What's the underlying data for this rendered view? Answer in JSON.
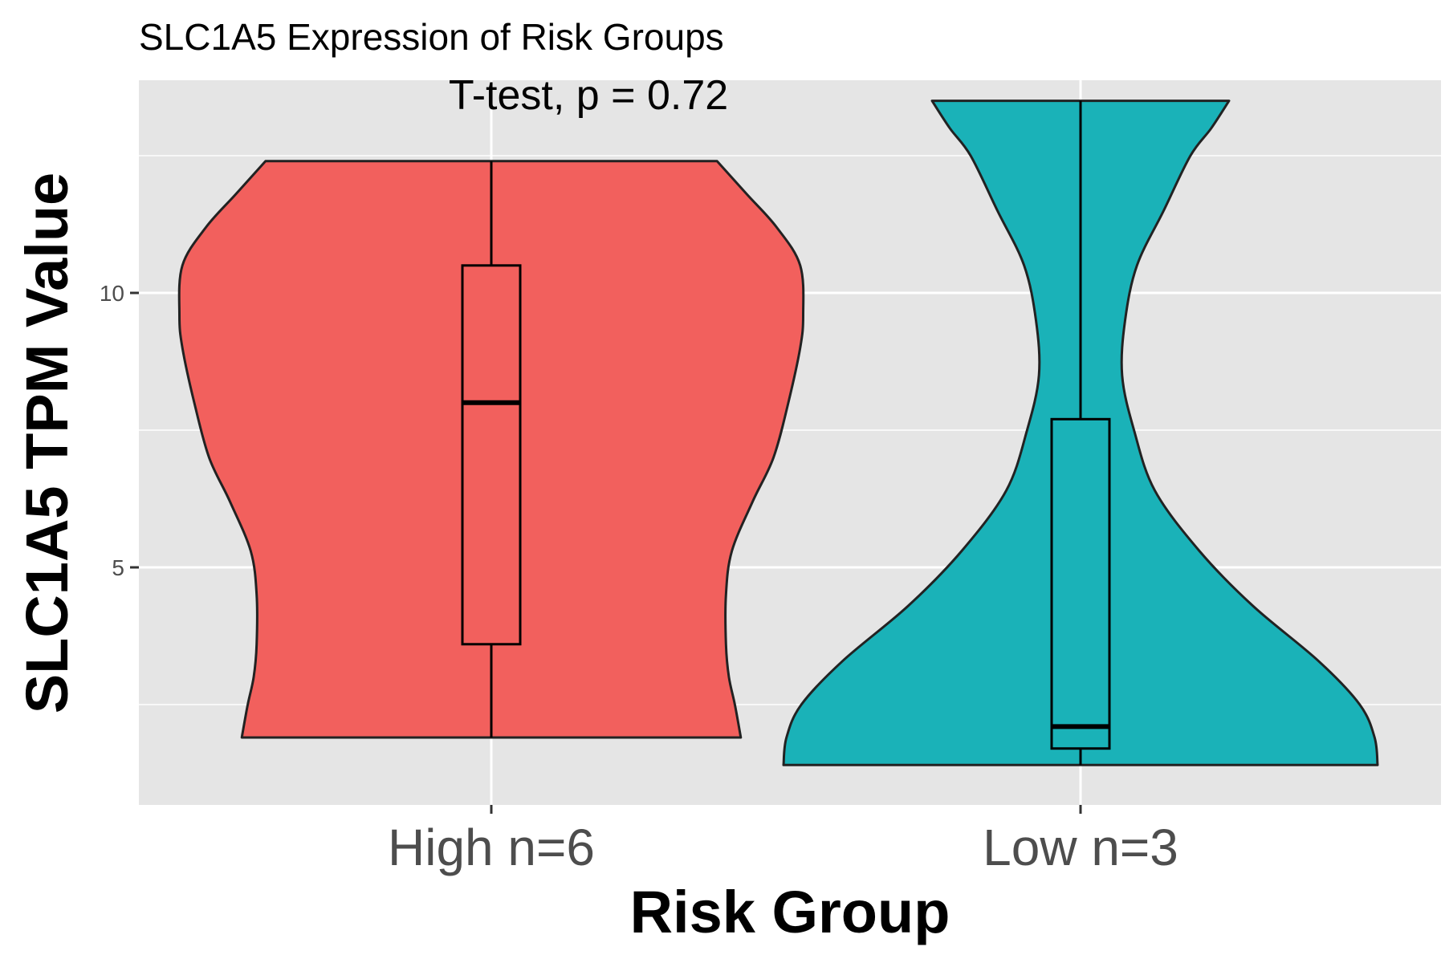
{
  "chart_data": {
    "type": "violin",
    "title": "SLC1A5 Expression of Risk Groups",
    "annotation": "T-test, p = 0.72",
    "xlabel": "Risk Group",
    "ylabel": "SLC1A5 TPM Value",
    "categories": [
      "High n=6",
      "Low n=3"
    ],
    "y_ticks": [
      5,
      10
    ],
    "ylim": [
      0.5,
      13.8
    ],
    "grid": true,
    "legend": "none",
    "groups": [
      {
        "name": "High n=6",
        "color": "#F2605D",
        "min": 1.9,
        "q1": 3.6,
        "median": 8.0,
        "q3": 10.5,
        "max": 12.4,
        "density": [
          [
            1.9,
            0.84
          ],
          [
            2.5,
            0.82
          ],
          [
            3.0,
            0.8
          ],
          [
            3.6,
            0.79
          ],
          [
            4.5,
            0.79
          ],
          [
            5.3,
            0.81
          ],
          [
            6.2,
            0.88
          ],
          [
            7.0,
            0.95
          ],
          [
            8.0,
            1.0
          ],
          [
            9.0,
            1.04
          ],
          [
            9.6,
            1.05
          ],
          [
            10.5,
            1.04
          ],
          [
            11.2,
            0.96
          ],
          [
            11.8,
            0.86
          ],
          [
            12.4,
            0.76
          ]
        ]
      },
      {
        "name": "Low n=3",
        "color": "#1AB2B8",
        "min": 1.4,
        "q1": 1.7,
        "median": 2.1,
        "q3": 7.7,
        "max": 13.5,
        "density": [
          [
            1.4,
            1.0
          ],
          [
            1.9,
            0.99
          ],
          [
            2.5,
            0.94
          ],
          [
            3.3,
            0.8
          ],
          [
            4.3,
            0.58
          ],
          [
            5.3,
            0.4
          ],
          [
            6.4,
            0.25
          ],
          [
            7.5,
            0.18
          ],
          [
            8.5,
            0.14
          ],
          [
            9.5,
            0.15
          ],
          [
            10.5,
            0.19
          ],
          [
            11.5,
            0.28
          ],
          [
            12.5,
            0.37
          ],
          [
            13.0,
            0.44
          ],
          [
            13.5,
            0.5
          ]
        ]
      }
    ]
  }
}
